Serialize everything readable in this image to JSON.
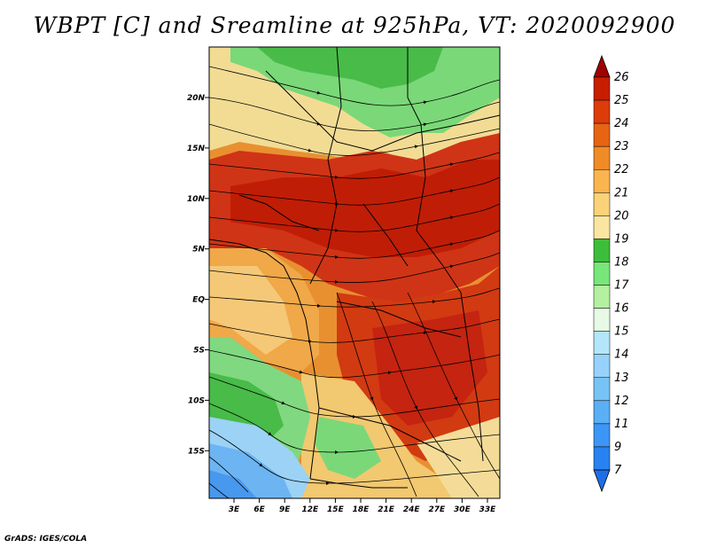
{
  "title": "WBPT [C] and Sreamline at 925hPa, VT: 2020092900",
  "credit": "GrADS: IGES/COLA",
  "map": {
    "lat_labels": [
      "20N",
      "15N",
      "10N",
      "5N",
      "EQ",
      "5S",
      "10S",
      "15S"
    ],
    "lon_labels": [
      "3E",
      "6E",
      "9E",
      "12E",
      "15E",
      "18E",
      "21E",
      "24E",
      "27E",
      "30E",
      "33E"
    ]
  },
  "colorbar": {
    "labels": [
      "7",
      "9",
      "11",
      "12",
      "13",
      "14",
      "15",
      "16",
      "17",
      "18",
      "19",
      "20",
      "21",
      "22",
      "23",
      "24",
      "25",
      "26"
    ],
    "colors": [
      "#1e6ee6",
      "#2882f0",
      "#3c96f5",
      "#5aaff5",
      "#78c3f5",
      "#96d2fa",
      "#b4e6fa",
      "#e6fae6",
      "#b4f0a0",
      "#78e678",
      "#3cbe3c",
      "#fae6a0",
      "#fad278",
      "#fab450",
      "#f08c28",
      "#e66414",
      "#dc3c0a",
      "#c81e00",
      "#a00000"
    ]
  }
}
